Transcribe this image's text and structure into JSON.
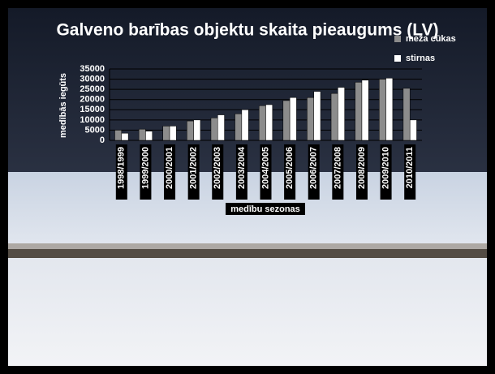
{
  "chart_data": {
    "type": "bar",
    "title": "Galveno barības objektu skaita pieaugums (LV)",
    "y_label": "medībās iegūts",
    "x_label": "medību sezonas",
    "categories": [
      "1998/1999",
      "1999/2000",
      "2000/2001",
      "2001/2002",
      "2002/2003",
      "2003/2004",
      "2004/2005",
      "2005/2006",
      "2006/2007",
      "2007/2008",
      "2008/2009",
      "2009/2010",
      "2010/2011"
    ],
    "series": [
      {
        "name": "meža cūkas",
        "color": "#8c8c8c",
        "values": [
          5000,
          5500,
          7000,
          9500,
          11000,
          13000,
          17000,
          19500,
          21000,
          23000,
          28500,
          30000,
          25500
        ]
      },
      {
        "name": "stirnas",
        "color": "#ffffff",
        "values": [
          3500,
          4500,
          7000,
          10000,
          12500,
          15000,
          17500,
          21000,
          24000,
          26000,
          29500,
          30500,
          10000
        ]
      }
    ],
    "ylim": [
      0,
      35000
    ],
    "yticks": [
      0,
      5000,
      10000,
      15000,
      20000,
      25000,
      30000,
      35000
    ],
    "grid": true,
    "legend": "top-right"
  }
}
